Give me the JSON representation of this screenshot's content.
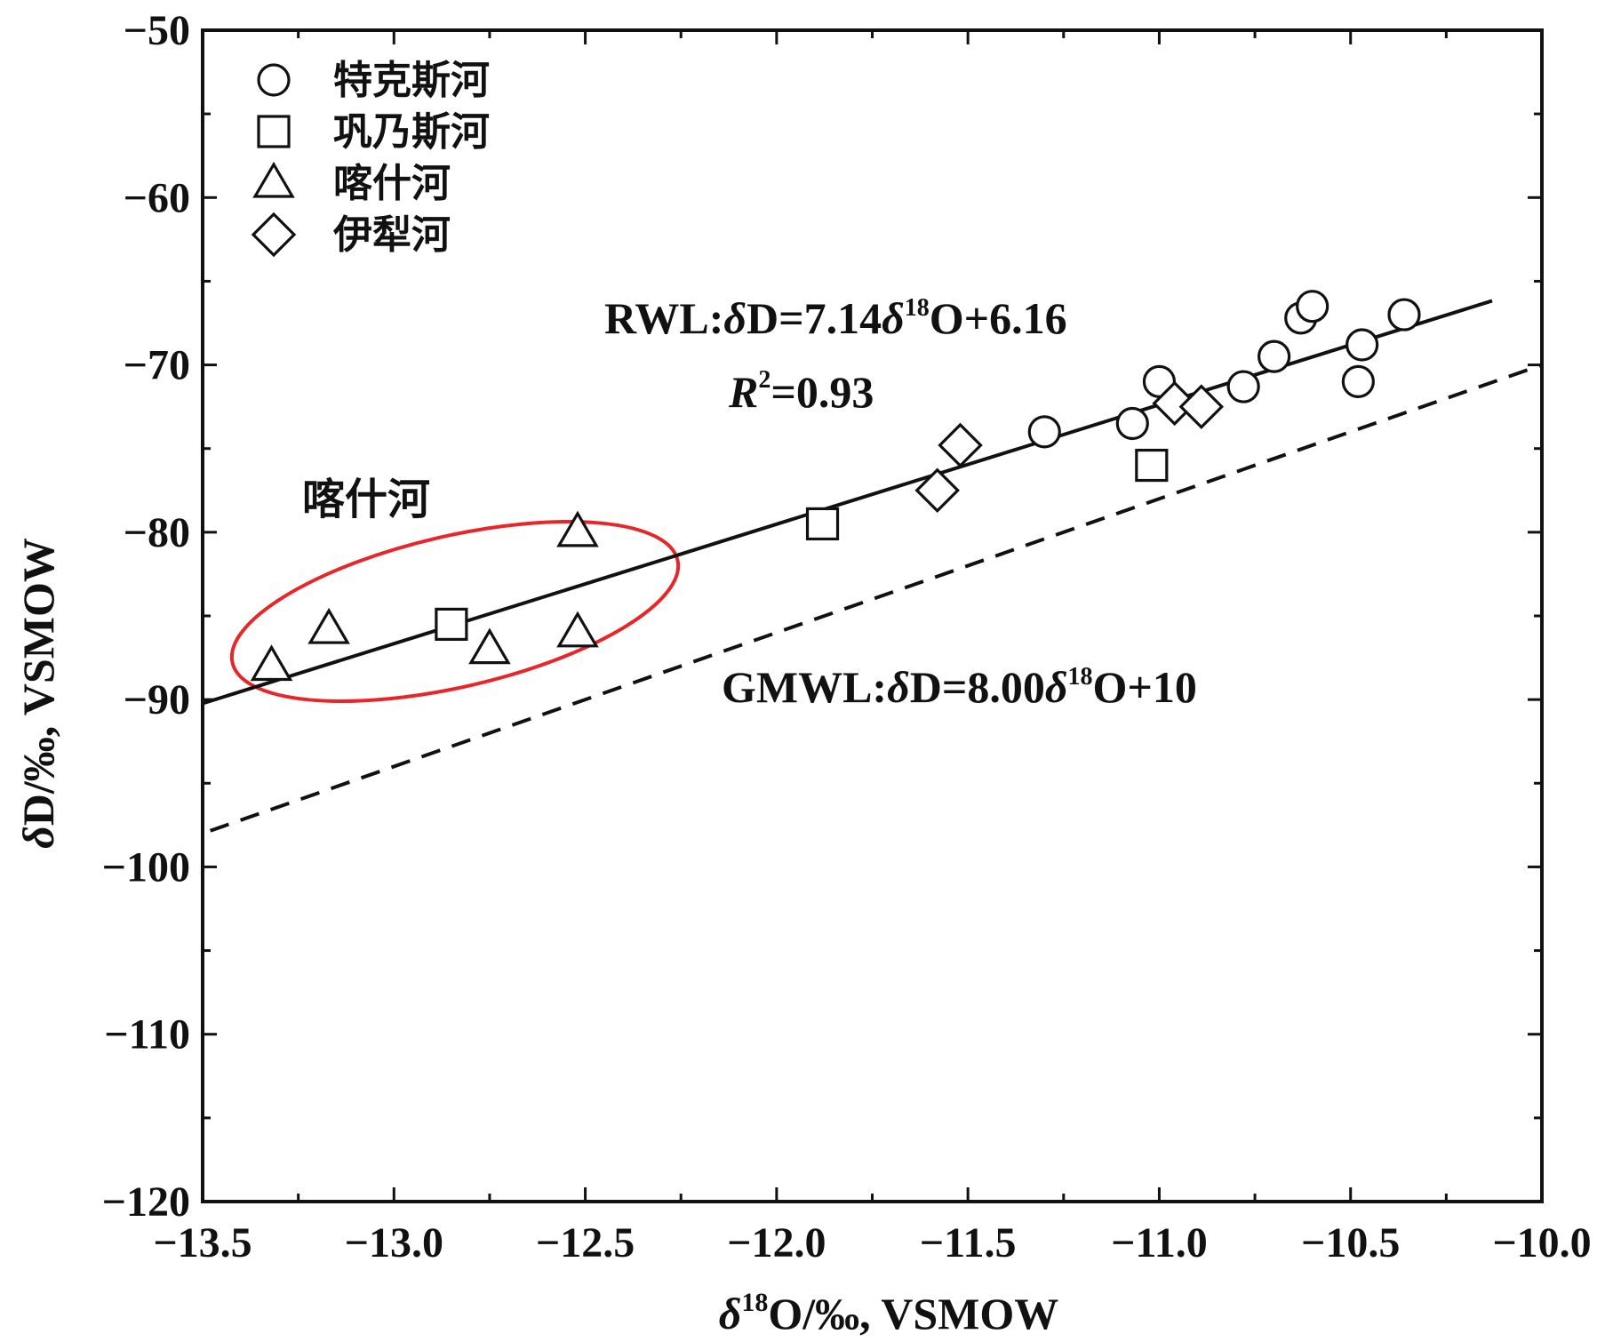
{
  "chart_data": {
    "type": "scatter",
    "xlim": [
      -13.5,
      -10.0
    ],
    "ylim": [
      -120,
      -50
    ],
    "x_ticks": [
      "−13.5",
      "−13.0",
      "−12.5",
      "−12.0",
      "−11.5",
      "−11.0",
      "−10.5",
      "−10.0"
    ],
    "y_ticks": [
      "−50",
      "−60",
      "−70",
      "−80",
      "−90",
      "−100",
      "−110",
      "−120"
    ],
    "xlabel": {
      "delta": "δ",
      "sup": "18",
      "rest": "O/‰, VSMOW"
    },
    "ylabel": {
      "delta": "δ",
      "rest": "D/‰, VSMOW"
    },
    "grid": false,
    "legend_position": "top-left",
    "series": [
      {
        "name": "特克斯河",
        "marker": "circle",
        "points": [
          [
            -11.3,
            -74.0
          ],
          [
            -11.07,
            -73.5
          ],
          [
            -11.0,
            -71.0
          ],
          [
            -10.78,
            -71.3
          ],
          [
            -10.7,
            -69.5
          ],
          [
            -10.63,
            -67.2
          ],
          [
            -10.6,
            -66.5
          ],
          [
            -10.47,
            -68.8
          ],
          [
            -10.48,
            -71.0
          ],
          [
            -10.36,
            -67.0
          ]
        ]
      },
      {
        "name": "巩乃斯河",
        "marker": "square",
        "points": [
          [
            -12.85,
            -85.5
          ],
          [
            -11.88,
            -79.5
          ],
          [
            -11.02,
            -76.0
          ]
        ]
      },
      {
        "name": "喀什河",
        "marker": "triangle",
        "points": [
          [
            -13.32,
            -88.0
          ],
          [
            -13.17,
            -85.8
          ],
          [
            -12.75,
            -87.0
          ],
          [
            -12.52,
            -80.0
          ],
          [
            -12.52,
            -86.0
          ]
        ]
      },
      {
        "name": "伊犁河",
        "marker": "diamond",
        "points": [
          [
            -11.58,
            -77.5
          ],
          [
            -11.52,
            -74.8
          ],
          [
            -10.96,
            -72.3
          ],
          [
            -10.89,
            -72.5
          ]
        ]
      }
    ],
    "lines": [
      {
        "name": "RWL",
        "style": "solid",
        "slope": 7.14,
        "intercept": 6.16,
        "x_range": [
          -13.5,
          -10.13
        ]
      },
      {
        "name": "GMWL",
        "style": "dashed",
        "slope": 8.0,
        "intercept": 10,
        "x_range": [
          -13.48,
          -10.0
        ]
      }
    ],
    "annotations": {
      "rwl": {
        "prefix": "RWL:",
        "d": "δ",
        "mid": "D=7.14",
        "d2": "δ",
        "sup": "18",
        "suffix": "O+6.16"
      },
      "r2": {
        "r": "R",
        "sup": "2",
        "value": "=0.93"
      },
      "gmwl": {
        "prefix": "GMWL:",
        "d": "δ",
        "mid": "D=8.00",
        "d2": "δ",
        "sup": "18",
        "suffix": "O+10"
      },
      "group_label": "喀什河"
    },
    "highlight": {
      "shape": "ellipse",
      "color": "#e8262a",
      "encloses": "喀什河"
    }
  }
}
